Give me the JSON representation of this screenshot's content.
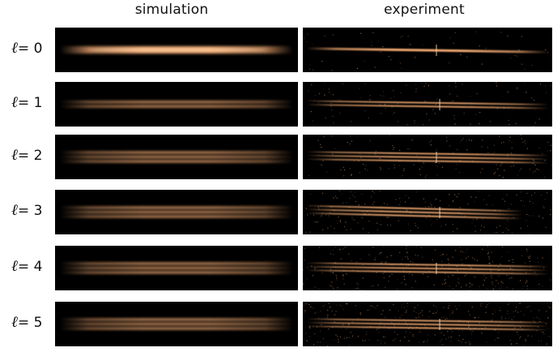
{
  "headers": {
    "simulation": "simulation",
    "experiment": "experiment"
  },
  "rows": [
    {
      "ell_symbol": "ℓ",
      "label": "= 0",
      "l": 0
    },
    {
      "ell_symbol": "ℓ",
      "label": "= 1",
      "l": 1
    },
    {
      "ell_symbol": "ℓ",
      "label": "= 2",
      "l": 2
    },
    {
      "ell_symbol": "ℓ",
      "label": "= 3",
      "l": 3
    },
    {
      "ell_symbol": "ℓ",
      "label": "= 4",
      "l": 4
    },
    {
      "ell_symbol": "ℓ",
      "label": "= 5",
      "l": 5
    }
  ],
  "colors": {
    "beam": "#f0a870",
    "beam_core": "#ffd9b0",
    "background": "#000000"
  }
}
